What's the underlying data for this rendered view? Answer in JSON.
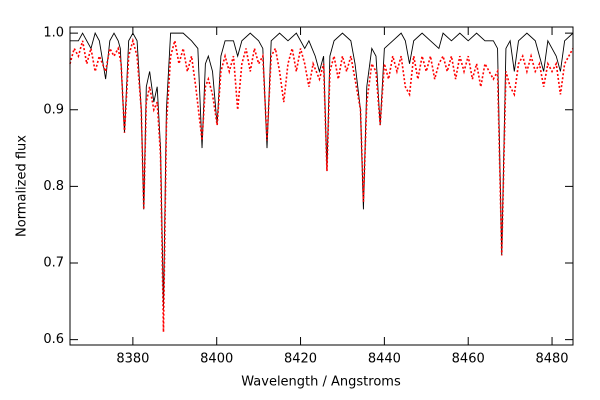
{
  "chart_data": {
    "type": "line",
    "xlabel": "Wavelength / Angstroms",
    "ylabel": "Normalized flux",
    "xlim": [
      8365,
      8485
    ],
    "ylim": [
      0.593,
      1.008
    ],
    "xticks": [
      8380,
      8400,
      8420,
      8440,
      8460,
      8480
    ],
    "yticks": [
      0.6,
      0.7,
      0.8,
      0.9,
      {
        "value": 1,
        "label": "1.0"
      }
    ],
    "series": [
      {
        "color": "#000000",
        "dash": false,
        "x": [
          8365,
          8367,
          8368,
          8370,
          8371,
          8372,
          8373.5,
          8374.5,
          8375.5,
          8376.5,
          8377,
          8378,
          8379,
          8380,
          8381,
          8382,
          8382.6,
          8383.2,
          8384,
          8385,
          8385.8,
          8386.6,
          8387.3,
          8388,
          8389,
          8392,
          8394,
          8395.5,
          8396.5,
          8397.3,
          8398,
          8399,
          8400.1,
          8401,
          8402,
          8404,
          8405,
          8406,
          8408,
          8410,
          8411,
          8412,
          8413,
          8415,
          8417,
          8419,
          8421,
          8422,
          8423.5,
          8424.5,
          8425.5,
          8426.3,
          8427,
          8428,
          8430,
          8432,
          8433,
          8434.3,
          8435,
          8435.8,
          8437,
          8438,
          8439,
          8440,
          8442,
          8444,
          8445,
          8446,
          8447,
          8449,
          8451,
          8453,
          8454,
          8456,
          8458,
          8460,
          8462,
          8464,
          8466,
          8467,
          8468,
          8469,
          8470,
          8471,
          8472,
          8474,
          8476,
          8478,
          8479,
          8480,
          8481,
          8482,
          8483,
          8485
        ],
        "values": [
          0.99,
          0.99,
          1.0,
          0.98,
          1.0,
          0.99,
          0.94,
          0.99,
          1.0,
          0.99,
          0.98,
          0.87,
          0.99,
          1.0,
          0.99,
          0.9,
          0.77,
          0.93,
          0.95,
          0.91,
          0.93,
          0.85,
          0.64,
          0.9,
          1.0,
          1.0,
          0.99,
          0.98,
          0.85,
          0.96,
          0.97,
          0.95,
          0.88,
          0.97,
          0.99,
          0.99,
          0.97,
          0.99,
          1.0,
          0.99,
          0.98,
          0.85,
          0.99,
          1.0,
          0.99,
          1.0,
          0.98,
          0.99,
          0.97,
          0.95,
          0.97,
          0.82,
          0.97,
          0.99,
          1.0,
          0.99,
          0.96,
          0.9,
          0.77,
          0.93,
          0.98,
          0.97,
          0.88,
          0.98,
          0.99,
          1.0,
          0.99,
          0.96,
          0.99,
          1.0,
          0.99,
          0.98,
          1.0,
          0.99,
          1.0,
          0.99,
          1.0,
          0.99,
          0.99,
          0.98,
          0.71,
          0.98,
          0.99,
          0.95,
          0.99,
          1.0,
          0.99,
          0.95,
          0.99,
          0.98,
          0.97,
          0.95,
          0.99,
          1.0
        ]
      },
      {
        "color": "#ff0000",
        "dash": true,
        "x": [
          8365,
          8366,
          8367,
          8368,
          8369,
          8370,
          8371,
          8372,
          8373.5,
          8374.5,
          8375.5,
          8376.5,
          8377.2,
          8378,
          8379,
          8380,
          8381,
          8382,
          8382.6,
          8383.2,
          8384,
          8385,
          8385.8,
          8386.6,
          8387.3,
          8388,
          8389,
          8390,
          8391,
          8392,
          8393,
          8394,
          8395,
          8396.5,
          8397.3,
          8398,
          8399,
          8400.1,
          8401,
          8402,
          8403,
          8404,
          8405,
          8406,
          8407,
          8408,
          8409,
          8410,
          8411,
          8412,
          8413,
          8414,
          8415,
          8416,
          8417,
          8418,
          8419,
          8420,
          8421,
          8422,
          8423,
          8424.5,
          8425.5,
          8426.3,
          8427,
          8428,
          8429,
          8430,
          8431,
          8432,
          8433,
          8434.3,
          8435,
          8435.8,
          8437,
          8438,
          8439,
          8440,
          8441,
          8442,
          8443,
          8444,
          8445,
          8446,
          8447,
          8448,
          8449,
          8450,
          8451,
          8452,
          8453,
          8454,
          8455,
          8456,
          8457,
          8458,
          8459,
          8460,
          8461,
          8462,
          8463,
          8464,
          8465,
          8466,
          8467,
          8468,
          8469,
          8470,
          8471,
          8472,
          8473,
          8474,
          8475,
          8476,
          8477,
          8478,
          8479,
          8480,
          8481,
          8482,
          8483,
          8484,
          8485
        ],
        "values": [
          0.96,
          0.98,
          0.97,
          0.99,
          0.96,
          0.98,
          0.95,
          0.97,
          0.95,
          0.98,
          0.97,
          0.98,
          0.96,
          0.87,
          0.97,
          0.99,
          0.97,
          0.9,
          0.77,
          0.91,
          0.93,
          0.9,
          0.91,
          0.84,
          0.61,
          0.88,
          0.97,
          0.99,
          0.96,
          0.98,
          0.95,
          0.97,
          0.93,
          0.86,
          0.93,
          0.94,
          0.92,
          0.88,
          0.95,
          0.97,
          0.95,
          0.97,
          0.9,
          0.96,
          0.98,
          0.95,
          0.98,
          0.96,
          0.97,
          0.86,
          0.97,
          0.98,
          0.95,
          0.91,
          0.96,
          0.98,
          0.95,
          0.98,
          0.96,
          0.93,
          0.96,
          0.94,
          0.96,
          0.82,
          0.95,
          0.97,
          0.94,
          0.97,
          0.95,
          0.97,
          0.94,
          0.9,
          0.78,
          0.91,
          0.96,
          0.95,
          0.88,
          0.96,
          0.94,
          0.97,
          0.95,
          0.97,
          0.93,
          0.92,
          0.97,
          0.94,
          0.97,
          0.95,
          0.97,
          0.94,
          0.96,
          0.97,
          0.95,
          0.97,
          0.94,
          0.97,
          0.95,
          0.97,
          0.94,
          0.96,
          0.93,
          0.96,
          0.95,
          0.94,
          0.95,
          0.71,
          0.95,
          0.93,
          0.92,
          0.96,
          0.97,
          0.95,
          0.97,
          0.95,
          0.96,
          0.93,
          0.96,
          0.95,
          0.96,
          0.92,
          0.96,
          0.97,
          0.98
        ]
      }
    ]
  }
}
